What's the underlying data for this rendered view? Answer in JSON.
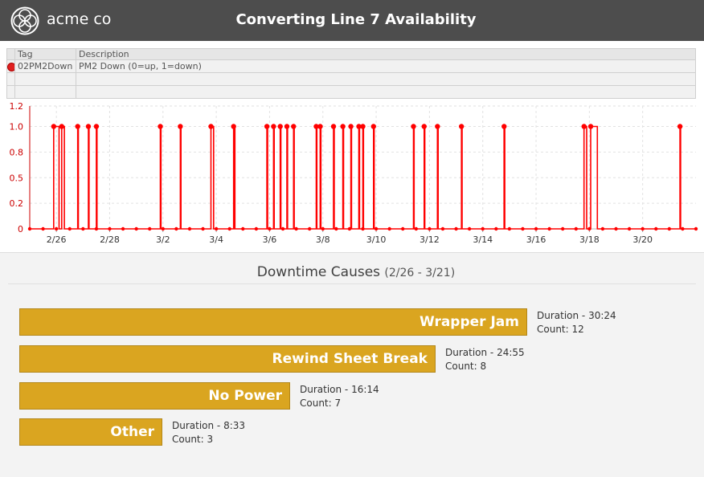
{
  "header": {
    "brand": "acme co",
    "title": "Converting Line 7 Availability"
  },
  "tag_table": {
    "columns": [
      "Tag",
      "Description"
    ],
    "rows": [
      {
        "tag": "02PM2Down",
        "description": "PM2 Down (0=up, 1=down)"
      }
    ]
  },
  "colors": {
    "header_bg": "#4d4d4d",
    "series": "#ff0000",
    "bar": "#daa520"
  },
  "chart_data": {
    "type": "line",
    "series": [
      {
        "name": "02PM2Down",
        "values": [
          [
            0,
            0
          ],
          [
            1.8,
            0
          ],
          [
            1.8,
            1
          ],
          [
            2.2,
            1
          ],
          [
            2.2,
            0
          ],
          [
            2.4,
            0
          ],
          [
            2.4,
            1
          ],
          [
            2.6,
            1
          ],
          [
            2.6,
            0
          ],
          [
            3.6,
            0
          ],
          [
            3.6,
            1
          ],
          [
            3.65,
            1
          ],
          [
            3.65,
            0
          ],
          [
            4.4,
            0
          ],
          [
            4.4,
            1
          ],
          [
            4.45,
            1
          ],
          [
            4.45,
            0
          ],
          [
            5.0,
            0
          ],
          [
            5.0,
            1
          ],
          [
            5.05,
            1
          ],
          [
            5.05,
            0
          ],
          [
            9.8,
            0
          ],
          [
            9.8,
            1
          ],
          [
            9.85,
            1
          ],
          [
            9.85,
            0
          ],
          [
            11.3,
            0
          ],
          [
            11.3,
            1
          ],
          [
            11.35,
            1
          ],
          [
            11.35,
            0
          ],
          [
            13.6,
            0
          ],
          [
            13.6,
            1
          ],
          [
            13.8,
            1
          ],
          [
            13.8,
            0
          ],
          [
            15.3,
            0
          ],
          [
            15.3,
            1
          ],
          [
            15.4,
            1
          ],
          [
            15.4,
            0
          ],
          [
            17.8,
            0
          ],
          [
            17.8,
            1
          ],
          [
            17.85,
            1
          ],
          [
            17.85,
            0
          ],
          [
            18.3,
            0
          ],
          [
            18.3,
            1
          ],
          [
            18.35,
            1
          ],
          [
            18.35,
            0
          ],
          [
            18.8,
            0
          ],
          [
            18.8,
            1
          ],
          [
            18.85,
            1
          ],
          [
            18.85,
            0
          ],
          [
            19.3,
            0
          ],
          [
            19.3,
            1
          ],
          [
            19.35,
            1
          ],
          [
            19.35,
            0
          ],
          [
            19.8,
            0
          ],
          [
            19.8,
            1
          ],
          [
            19.85,
            1
          ],
          [
            19.85,
            0
          ],
          [
            21.5,
            0
          ],
          [
            21.5,
            1
          ],
          [
            21.55,
            1
          ],
          [
            21.55,
            0
          ],
          [
            21.8,
            0
          ],
          [
            21.8,
            1
          ],
          [
            21.85,
            1
          ],
          [
            21.85,
            0
          ],
          [
            22.8,
            0
          ],
          [
            22.8,
            1
          ],
          [
            22.85,
            1
          ],
          [
            22.85,
            0
          ],
          [
            23.5,
            0
          ],
          [
            23.5,
            1
          ],
          [
            23.55,
            1
          ],
          [
            23.55,
            0
          ],
          [
            24.1,
            0
          ],
          [
            24.1,
            1
          ],
          [
            24.15,
            1
          ],
          [
            24.15,
            0
          ],
          [
            24.7,
            0
          ],
          [
            24.7,
            1
          ],
          [
            24.75,
            1
          ],
          [
            24.75,
            0
          ],
          [
            25.0,
            0
          ],
          [
            25.0,
            1
          ],
          [
            25.05,
            1
          ],
          [
            25.05,
            0
          ],
          [
            25.8,
            0
          ],
          [
            25.8,
            1
          ],
          [
            25.85,
            1
          ],
          [
            25.85,
            0
          ],
          [
            28.8,
            0
          ],
          [
            28.8,
            1
          ],
          [
            28.85,
            1
          ],
          [
            28.85,
            0
          ],
          [
            29.6,
            0
          ],
          [
            29.6,
            1
          ],
          [
            29.65,
            1
          ],
          [
            29.65,
            0
          ],
          [
            30.6,
            0
          ],
          [
            30.6,
            1
          ],
          [
            30.65,
            1
          ],
          [
            30.65,
            0
          ],
          [
            32.4,
            0
          ],
          [
            32.4,
            1
          ],
          [
            32.45,
            1
          ],
          [
            32.45,
            0
          ],
          [
            35.6,
            0
          ],
          [
            35.6,
            1
          ],
          [
            35.65,
            1
          ],
          [
            35.65,
            0
          ],
          [
            41.6,
            0
          ],
          [
            41.6,
            1
          ],
          [
            41.8,
            1
          ],
          [
            41.8,
            0
          ],
          [
            42.1,
            0
          ],
          [
            42.1,
            1
          ],
          [
            42.6,
            1
          ],
          [
            42.6,
            0
          ],
          [
            48.8,
            0
          ],
          [
            48.8,
            1
          ],
          [
            48.85,
            1
          ],
          [
            48.85,
            0
          ],
          [
            50,
            0
          ]
        ]
      }
    ],
    "x_tick_labels": [
      "2/26",
      "2/28",
      "3/2",
      "3/4",
      "3/6",
      "3/8",
      "3/10",
      "3/12",
      "3/14",
      "3/16",
      "3/18",
      "3/20"
    ],
    "y_tick_labels": [
      "0",
      "0.2",
      "0.5",
      "0.8",
      "1.0",
      "1.2"
    ],
    "ylim": [
      0,
      1.2
    ],
    "xlim": [
      0,
      50
    ],
    "grid": true
  },
  "downtime": {
    "title": "Downtime Causes",
    "range": "(2/26 - 3/21)",
    "causes": [
      {
        "label": "Wrapper Jam",
        "duration": "Duration - 30:24",
        "count": "Count: 12",
        "minutes": 30.4
      },
      {
        "label": "Rewind Sheet Break",
        "duration": "Duration - 24:55",
        "count": "Count: 8",
        "minutes": 24.92
      },
      {
        "label": "No Power",
        "duration": "Duration - 16:14",
        "count": "Count: 7",
        "minutes": 16.23
      },
      {
        "label": "Other",
        "duration": "Duration - 8:33",
        "count": "Count: 3",
        "minutes": 8.55
      }
    ]
  }
}
